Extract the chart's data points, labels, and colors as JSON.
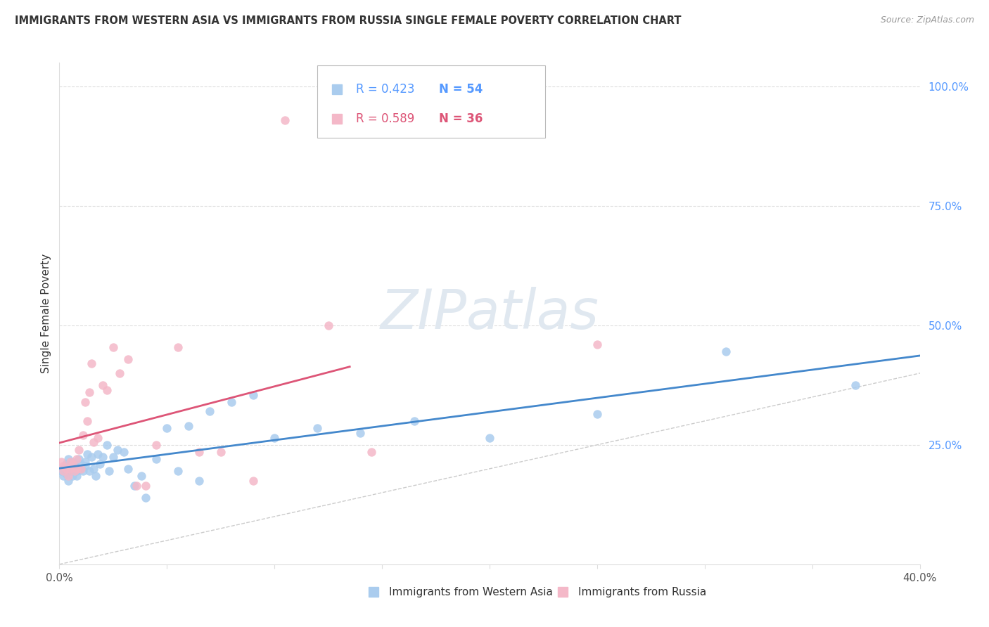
{
  "title": "IMMIGRANTS FROM WESTERN ASIA VS IMMIGRANTS FROM RUSSIA SINGLE FEMALE POVERTY CORRELATION CHART",
  "source": "Source: ZipAtlas.com",
  "ylabel": "Single Female Poverty",
  "legend_label_blue": "Immigrants from Western Asia",
  "legend_label_pink": "Immigrants from Russia",
  "watermark": "ZIPatlas",
  "blue_color": "#aaccee",
  "pink_color": "#f4b8c8",
  "blue_line_color": "#4488cc",
  "pink_line_color": "#dd5577",
  "diagonal_color": "#cccccc",
  "background_color": "#ffffff",
  "grid_color": "#dddddd",
  "blue_scatter_x": [
    0.001,
    0.002,
    0.002,
    0.003,
    0.003,
    0.004,
    0.004,
    0.005,
    0.005,
    0.006,
    0.006,
    0.007,
    0.007,
    0.008,
    0.008,
    0.009,
    0.01,
    0.01,
    0.011,
    0.012,
    0.012,
    0.013,
    0.014,
    0.015,
    0.016,
    0.017,
    0.018,
    0.019,
    0.02,
    0.022,
    0.023,
    0.025,
    0.027,
    0.03,
    0.032,
    0.035,
    0.038,
    0.04,
    0.045,
    0.05,
    0.055,
    0.06,
    0.065,
    0.07,
    0.08,
    0.09,
    0.1,
    0.12,
    0.14,
    0.165,
    0.2,
    0.25,
    0.31,
    0.37
  ],
  "blue_scatter_y": [
    0.195,
    0.2,
    0.185,
    0.21,
    0.19,
    0.22,
    0.175,
    0.205,
    0.195,
    0.215,
    0.185,
    0.2,
    0.21,
    0.195,
    0.185,
    0.22,
    0.2,
    0.21,
    0.195,
    0.215,
    0.205,
    0.23,
    0.195,
    0.225,
    0.2,
    0.185,
    0.23,
    0.21,
    0.225,
    0.25,
    0.195,
    0.225,
    0.24,
    0.235,
    0.2,
    0.165,
    0.185,
    0.14,
    0.22,
    0.285,
    0.195,
    0.29,
    0.175,
    0.32,
    0.34,
    0.355,
    0.265,
    0.285,
    0.275,
    0.3,
    0.265,
    0.315,
    0.445,
    0.375
  ],
  "pink_scatter_x": [
    0.001,
    0.002,
    0.002,
    0.003,
    0.004,
    0.005,
    0.005,
    0.006,
    0.007,
    0.008,
    0.008,
    0.009,
    0.01,
    0.011,
    0.012,
    0.013,
    0.014,
    0.015,
    0.016,
    0.018,
    0.02,
    0.022,
    0.025,
    0.028,
    0.032,
    0.036,
    0.04,
    0.045,
    0.055,
    0.065,
    0.075,
    0.09,
    0.105,
    0.125,
    0.145,
    0.25
  ],
  "pink_scatter_y": [
    0.215,
    0.205,
    0.195,
    0.2,
    0.185,
    0.215,
    0.2,
    0.21,
    0.195,
    0.2,
    0.22,
    0.24,
    0.2,
    0.27,
    0.34,
    0.3,
    0.36,
    0.42,
    0.255,
    0.265,
    0.375,
    0.365,
    0.455,
    0.4,
    0.43,
    0.165,
    0.165,
    0.25,
    0.455,
    0.235,
    0.235,
    0.175,
    0.93,
    0.5,
    0.235,
    0.46
  ],
  "xlim": [
    0.0,
    0.4
  ],
  "ylim": [
    0.0,
    1.05
  ],
  "right_yticks": [
    0.25,
    0.5,
    0.75,
    1.0
  ],
  "right_yticklabels": [
    "25.0%",
    "50.0%",
    "75.0%",
    "100.0%"
  ],
  "right_ytick_color": "#5599ff",
  "xtick_color": "#555555",
  "ylabel_color": "#333333",
  "title_color": "#333333",
  "source_color": "#999999",
  "legend_r_color_blue": "#5599ff",
  "legend_n_color_blue": "#5599ff",
  "legend_r_color_pink": "#dd5577",
  "legend_n_color_pink": "#dd5577"
}
